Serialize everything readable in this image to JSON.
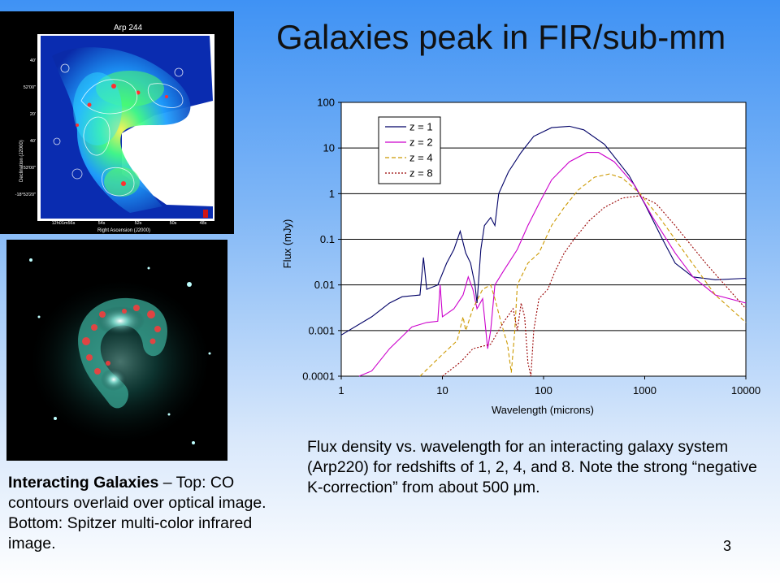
{
  "slide": {
    "title": "Galaxies peak in FIR/sub-mm",
    "number": "3",
    "left_caption": {
      "bold": "Interacting Galaxies",
      "text": " – Top: CO contours overlaid over optical image.  Bottom: Spitzer multi-color infrared image."
    },
    "right_caption": {
      "text": "Flux density vs. wavelength for an interacting galaxy system (Arp220) for redshifts of 1, 2, 4, and 8.  Note the strong “negative K-correction”  from about 500 ",
      "mu": "μ",
      "unit_tail": "m."
    },
    "top_image": {
      "label": "Arp 244",
      "ylabel": "Declination (J2000)",
      "xlabel": "Right Ascension (J2000)",
      "yticks": [
        "40'",
        "52'00\"",
        "20'",
        "40'",
        "53'00\"",
        "-18°53'20\""
      ],
      "xticks": [
        "12h01m56s",
        "54s",
        "52s",
        "50s",
        "48s"
      ]
    }
  },
  "chart_data": {
    "type": "line",
    "title": "",
    "xlabel": "Wavelength (microns)",
    "ylabel": "Flux (mJy)",
    "xscale": "log",
    "yscale": "log",
    "xlim": [
      1,
      10000
    ],
    "ylim": [
      0.0001,
      100
    ],
    "x_ticks": [
      "1",
      "10",
      "100",
      "1000",
      "10000"
    ],
    "y_ticks": [
      "100",
      "10",
      "1",
      "0.1",
      "0.01",
      "0.001",
      "0.0001"
    ],
    "grid": "horizontal",
    "legend_position": "top-left",
    "series": [
      {
        "name": "z = 1",
        "color": "#000066",
        "dash": "solid",
        "points": [
          [
            1,
            0.0008
          ],
          [
            2,
            0.002
          ],
          [
            3,
            0.004
          ],
          [
            4,
            0.0055
          ],
          [
            6,
            0.006
          ],
          [
            6.5,
            0.04
          ],
          [
            7,
            0.008
          ],
          [
            9,
            0.01
          ],
          [
            11,
            0.03
          ],
          [
            13,
            0.06
          ],
          [
            15,
            0.15
          ],
          [
            17,
            0.05
          ],
          [
            19,
            0.03
          ],
          [
            21,
            0.01
          ],
          [
            22,
            0.004
          ],
          [
            24,
            0.06
          ],
          [
            26,
            0.2
          ],
          [
            30,
            0.3
          ],
          [
            33,
            0.2
          ],
          [
            36,
            1
          ],
          [
            45,
            3
          ],
          [
            60,
            8
          ],
          [
            80,
            18
          ],
          [
            120,
            28
          ],
          [
            180,
            30
          ],
          [
            250,
            25
          ],
          [
            400,
            12
          ],
          [
            700,
            2.5
          ],
          [
            1000,
            0.6
          ],
          [
            1500,
            0.1
          ],
          [
            2000,
            0.03
          ],
          [
            3000,
            0.015
          ],
          [
            5000,
            0.013
          ],
          [
            10000,
            0.014
          ]
        ]
      },
      {
        "name": "z = 2",
        "color": "#cc00cc",
        "dash": "solid",
        "points": [
          [
            1.5,
            0.0001
          ],
          [
            2,
            0.00013
          ],
          [
            3,
            0.0004
          ],
          [
            5,
            0.0012
          ],
          [
            7,
            0.0015
          ],
          [
            9,
            0.0016
          ],
          [
            9.5,
            0.01
          ],
          [
            10,
            0.002
          ],
          [
            13,
            0.003
          ],
          [
            16,
            0.006
          ],
          [
            18,
            0.015
          ],
          [
            20,
            0.008
          ],
          [
            22,
            0.003
          ],
          [
            25,
            0.005
          ],
          [
            28,
            0.0004
          ],
          [
            30,
            0.001
          ],
          [
            33,
            0.01
          ],
          [
            40,
            0.02
          ],
          [
            55,
            0.06
          ],
          [
            70,
            0.2
          ],
          [
            90,
            0.6
          ],
          [
            120,
            2
          ],
          [
            180,
            5
          ],
          [
            270,
            8
          ],
          [
            350,
            8
          ],
          [
            500,
            5
          ],
          [
            800,
            1.5
          ],
          [
            1200,
            0.3
          ],
          [
            2000,
            0.05
          ],
          [
            3000,
            0.015
          ],
          [
            5000,
            0.006
          ],
          [
            10000,
            0.004
          ]
        ]
      },
      {
        "name": "z = 4",
        "color": "#cc9900",
        "dash": "dash",
        "points": [
          [
            6,
            0.0001
          ],
          [
            10,
            0.0003
          ],
          [
            14,
            0.0006
          ],
          [
            16,
            0.002
          ],
          [
            17,
            0.001
          ],
          [
            20,
            0.003
          ],
          [
            25,
            0.008
          ],
          [
            30,
            0.01
          ],
          [
            33,
            0.005
          ],
          [
            38,
            0.0015
          ],
          [
            44,
            0.0005
          ],
          [
            48,
            0.00012
          ],
          [
            52,
            0.001
          ],
          [
            55,
            0.01
          ],
          [
            70,
            0.03
          ],
          [
            90,
            0.05
          ],
          [
            120,
            0.2
          ],
          [
            160,
            0.5
          ],
          [
            220,
            1.2
          ],
          [
            320,
            2.3
          ],
          [
            450,
            2.7
          ],
          [
            600,
            2.2
          ],
          [
            900,
            1
          ],
          [
            1400,
            0.3
          ],
          [
            2500,
            0.05
          ],
          [
            5000,
            0.006
          ],
          [
            10000,
            0.0015
          ]
        ]
      },
      {
        "name": "z = 8",
        "color": "#990000",
        "dash": "dot",
        "points": [
          [
            10,
            0.0001
          ],
          [
            15,
            0.0002
          ],
          [
            20,
            0.0004
          ],
          [
            30,
            0.0005
          ],
          [
            40,
            0.0015
          ],
          [
            50,
            0.003
          ],
          [
            55,
            0.001
          ],
          [
            60,
            0.004
          ],
          [
            65,
            0.002
          ],
          [
            70,
            0.0002
          ],
          [
            75,
            0.0001
          ],
          [
            80,
            0.001
          ],
          [
            90,
            0.005
          ],
          [
            110,
            0.008
          ],
          [
            130,
            0.02
          ],
          [
            160,
            0.05
          ],
          [
            200,
            0.1
          ],
          [
            280,
            0.25
          ],
          [
            400,
            0.5
          ],
          [
            600,
            0.8
          ],
          [
            900,
            0.9
          ],
          [
            1300,
            0.6
          ],
          [
            2000,
            0.2
          ],
          [
            4000,
            0.03
          ],
          [
            10000,
            0.003
          ]
        ]
      }
    ]
  },
  "colors": {
    "background_top": "#3f92f4",
    "background_bottom": "#ffffff"
  },
  "images": {
    "top": "optical-co-contours",
    "bottom": "spitzer-infrared"
  }
}
